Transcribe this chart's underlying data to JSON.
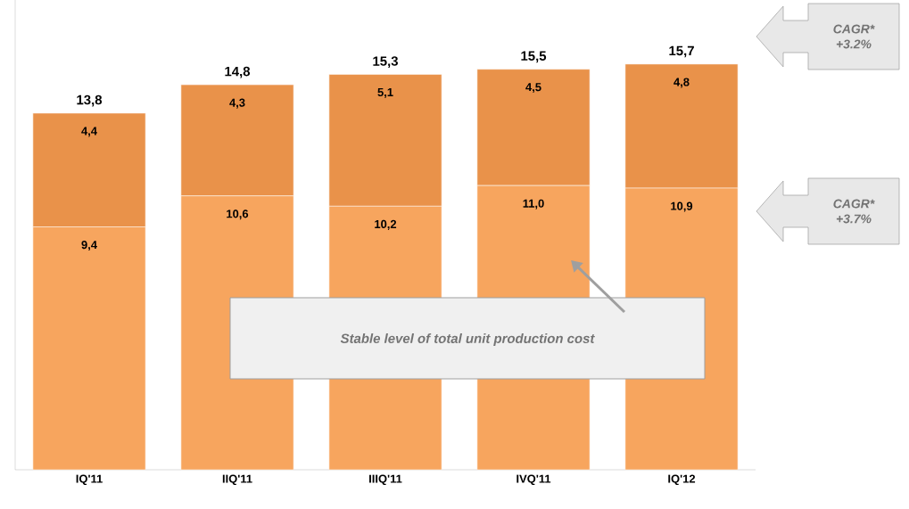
{
  "chart_data": {
    "type": "bar",
    "stacked": true,
    "tick_labels": "x",
    "categories": [
      "IQ'11",
      "IIQ'11",
      "IIIQ'11",
      "IVQ'11",
      "IQ'12"
    ],
    "series": [
      {
        "color": "#f7a55e",
        "values": [
          9.4,
          10.6,
          10.2,
          11.0,
          10.9
        ],
        "value_labels": [
          "9,4",
          "10,6",
          "10,2",
          "11,0",
          "10,9"
        ]
      },
      {
        "color": "#e9924a",
        "values": [
          4.4,
          4.3,
          5.1,
          4.5,
          4.8
        ],
        "value_labels": [
          "4,4",
          "4,3",
          "5,1",
          "4,5",
          "4,8"
        ]
      }
    ],
    "totals": [
      "13,8",
      "14,8",
      "15,3",
      "15,5",
      "15,7"
    ],
    "annotations": [
      "CAGR* +3.2%",
      "CAGR* +3.7%",
      "Stable level of total unit production cost"
    ]
  }
}
